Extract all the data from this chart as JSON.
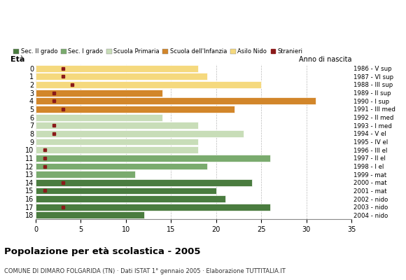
{
  "ages": [
    18,
    17,
    16,
    15,
    14,
    13,
    12,
    11,
    10,
    9,
    8,
    7,
    6,
    5,
    4,
    3,
    2,
    1,
    0
  ],
  "anno_nascita": [
    "1986 - V sup",
    "1987 - VI sup",
    "1988 - III sup",
    "1989 - II sup",
    "1990 - I sup",
    "1991 - III med",
    "1992 - II med",
    "1993 - I med",
    "1994 - V el",
    "1995 - IV el",
    "1996 - III el",
    "1997 - II el",
    "1998 - I el",
    "1999 - mat",
    "2000 - mat",
    "2001 - mat",
    "2002 - nido",
    "2003 - nido",
    "2004 - nido"
  ],
  "values": [
    12,
    26,
    21,
    20,
    24,
    11,
    19,
    26,
    18,
    18,
    23,
    18,
    14,
    22,
    31,
    14,
    25,
    19,
    18
  ],
  "stranieri": [
    0,
    3,
    0,
    1,
    3,
    0,
    1,
    1,
    1,
    0,
    2,
    2,
    0,
    3,
    2,
    2,
    4,
    3,
    3
  ],
  "categories": [
    "Sec. II grado",
    "Sec. I grado",
    "Scuola Primaria",
    "Scuola dell'Infanzia",
    "Asilo Nido"
  ],
  "bar_colors": [
    "#4a7c3f",
    "#7aab6e",
    "#c8ddb8",
    "#d2862a",
    "#f5d97e"
  ],
  "stranieri_color": "#8b1a1a",
  "age_category": [
    0,
    0,
    0,
    0,
    0,
    1,
    1,
    1,
    2,
    2,
    2,
    2,
    2,
    3,
    3,
    3,
    4,
    4,
    4
  ],
  "background_color": "#ffffff",
  "grid_color": "#aaaaaa",
  "title": "Popolazione per età scolastica - 2005",
  "subtitle": "COMUNE DI DIMARO FOLGARIDA (TN) · Dati ISTAT 1° gennaio 2005 · Elaborazione TUTTITALIA.IT",
  "xlabel_eta": "Età",
  "xlabel_anno": "Anno di nascita",
  "xlim": [
    0,
    35
  ],
  "xticks": [
    0,
    5,
    10,
    15,
    20,
    25,
    30,
    35
  ]
}
